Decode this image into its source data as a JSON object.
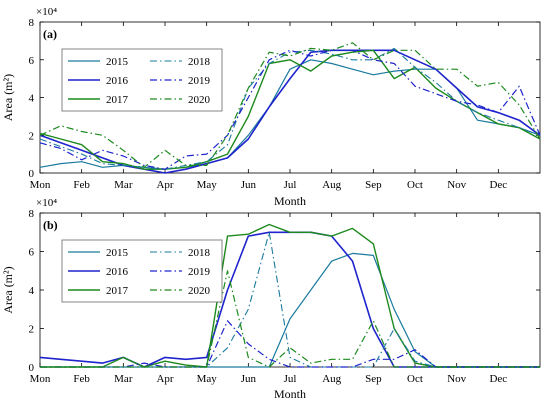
{
  "x_axis_label": "Month",
  "y_axis_label": "Area (m²)",
  "y_exponent_label": "×10⁴",
  "chart_data": [
    {
      "type": "line",
      "panel_label": "(a)",
      "xlabel": "Month",
      "ylabel": "Area (m²)",
      "y_multiplier": "×10⁴",
      "xlim": [
        0,
        12
      ],
      "ylim": [
        0,
        8
      ],
      "grid": false,
      "legend": "top-left",
      "x_tick_labels": [
        "Mon",
        "Feb",
        "Mar",
        "Apr",
        "May",
        "Jun",
        "Jul",
        "Aug",
        "Sep",
        "Oct",
        "Nov",
        "Dec"
      ],
      "y_ticks": [
        0,
        2,
        4,
        6,
        8
      ],
      "series": [
        {
          "name": "2015",
          "color": "#1a7a9e",
          "dash": "solid",
          "width": 1.2,
          "x": [
            0,
            0.5,
            1,
            1.5,
            2,
            2.5,
            3,
            3.5,
            4,
            4.5,
            5,
            5.5,
            6,
            6.5,
            7,
            7.5,
            8,
            8.5,
            9,
            9.5,
            10,
            10.5,
            11,
            11.5,
            12
          ],
          "y": [
            0.3,
            0.5,
            0.6,
            0.3,
            0.4,
            0.3,
            0.2,
            0.3,
            0.5,
            0.8,
            2.0,
            3.5,
            5.5,
            6.0,
            5.8,
            5.5,
            5.2,
            5.4,
            5.5,
            5.5,
            4.5,
            2.8,
            2.6,
            2.4,
            2.0
          ]
        },
        {
          "name": "2016",
          "color": "#1f24cc",
          "dash": "solid",
          "width": 1.6,
          "x": [
            0,
            0.5,
            1,
            1.5,
            2,
            2.5,
            3,
            3.5,
            4,
            4.5,
            5,
            5.5,
            6,
            6.5,
            7,
            7.5,
            8,
            8.5,
            9,
            9.5,
            10,
            10.5,
            11,
            11.5,
            12
          ],
          "y": [
            2.0,
            1.6,
            1.2,
            0.8,
            0.4,
            0.2,
            0.0,
            0.2,
            0.5,
            0.8,
            1.8,
            3.5,
            5.0,
            6.4,
            6.5,
            6.5,
            6.5,
            6.5,
            6.0,
            5.5,
            4.5,
            3.5,
            3.2,
            2.8,
            2.0
          ]
        },
        {
          "name": "2017",
          "color": "#1d8a1d",
          "dash": "solid",
          "width": 1.4,
          "x": [
            0,
            0.5,
            1,
            1.5,
            2,
            2.5,
            3,
            3.5,
            4,
            4.5,
            5,
            5.5,
            6,
            6.5,
            7,
            7.5,
            8,
            8.5,
            9,
            9.5,
            10,
            10.5,
            11,
            11.5,
            12
          ],
          "y": [
            2.1,
            1.8,
            1.5,
            0.6,
            0.5,
            0.2,
            0.2,
            0.3,
            0.6,
            1.0,
            3.0,
            5.8,
            6.0,
            5.4,
            6.2,
            6.4,
            6.5,
            5.0,
            5.6,
            4.5,
            3.8,
            3.2,
            2.6,
            2.4,
            1.8
          ]
        },
        {
          "name": "2018",
          "color": "#1a7a9e",
          "dash": "dashdot",
          "width": 1.1,
          "x": [
            0,
            0.5,
            1,
            1.5,
            2,
            2.5,
            3,
            3.5,
            4,
            4.5,
            5,
            5.5,
            6,
            6.5,
            7,
            7.5,
            8,
            8.5,
            9,
            9.5,
            10,
            10.5,
            11,
            11.5,
            12
          ],
          "y": [
            1.8,
            1.4,
            1.0,
            0.5,
            0.4,
            0.3,
            0.2,
            0.4,
            0.6,
            1.5,
            4.5,
            5.8,
            6.4,
            6.5,
            6.3,
            6.0,
            6.0,
            6.6,
            5.6,
            4.8,
            3.8,
            3.2,
            2.8,
            2.4,
            2.0
          ]
        },
        {
          "name": "2019",
          "color": "#1f24cc",
          "dash": "dashdot",
          "width": 1.2,
          "x": [
            0,
            0.5,
            1,
            1.5,
            2,
            2.5,
            3,
            3.5,
            4,
            4.5,
            5,
            5.5,
            6,
            6.5,
            7,
            7.5,
            8,
            8.5,
            9,
            9.5,
            10,
            10.5,
            11,
            11.5,
            12
          ],
          "y": [
            1.6,
            1.3,
            0.7,
            1.2,
            0.9,
            0.4,
            0.2,
            0.9,
            1.0,
            2.0,
            4.0,
            6.0,
            6.5,
            6.2,
            6.5,
            6.5,
            6.0,
            5.8,
            4.6,
            4.2,
            3.8,
            3.6,
            3.2,
            4.6,
            2.0
          ]
        },
        {
          "name": "2020",
          "color": "#1d8a1d",
          "dash": "dashdot",
          "width": 1.2,
          "x": [
            0,
            0.5,
            1,
            1.5,
            2,
            2.5,
            3,
            3.5,
            4,
            4.5,
            5,
            5.5,
            6,
            6.5,
            7,
            7.5,
            8,
            8.5,
            9,
            9.5,
            10,
            10.5,
            11,
            11.5,
            12
          ],
          "y": [
            2.0,
            2.5,
            2.2,
            2.0,
            1.2,
            0.3,
            1.2,
            0.4,
            0.4,
            2.0,
            4.5,
            6.4,
            6.2,
            6.6,
            6.5,
            6.9,
            6.0,
            6.5,
            6.5,
            5.5,
            5.5,
            4.6,
            4.8,
            3.6,
            1.8
          ]
        }
      ]
    },
    {
      "type": "line",
      "panel_label": "(b)",
      "xlabel": "Month",
      "ylabel": "Area (m²)",
      "y_multiplier": "×10⁴",
      "xlim": [
        0,
        12
      ],
      "ylim": [
        0,
        8
      ],
      "grid": false,
      "legend": "top-left",
      "x_tick_labels": [
        "Mon",
        "Feb",
        "Mar",
        "Apr",
        "May",
        "Jun",
        "Jul",
        "Aug",
        "Sep",
        "Oct",
        "Nov",
        "Dec"
      ],
      "y_ticks": [
        0,
        2,
        4,
        6,
        8
      ],
      "series": [
        {
          "name": "2015",
          "color": "#1a7a9e",
          "dash": "solid",
          "width": 1.2,
          "x": [
            0,
            0.5,
            1,
            1.5,
            2,
            2.5,
            3,
            3.5,
            4,
            4.5,
            5,
            5.5,
            6,
            6.5,
            7,
            7.5,
            8,
            8.5,
            9,
            9.5,
            10,
            10.5,
            11,
            11.5,
            12
          ],
          "y": [
            0.0,
            0.0,
            0.0,
            0.0,
            0.0,
            0.0,
            0.0,
            0.0,
            0.0,
            0.0,
            0.0,
            0.0,
            2.5,
            4.0,
            5.5,
            5.9,
            5.8,
            3.0,
            0.8,
            0.0,
            0.0,
            0.0,
            0.0,
            0.0,
            0.0
          ]
        },
        {
          "name": "2016",
          "color": "#1f24cc",
          "dash": "solid",
          "width": 1.6,
          "x": [
            0,
            0.5,
            1,
            1.5,
            2,
            2.5,
            3,
            3.5,
            4,
            4.5,
            5,
            5.5,
            6,
            6.5,
            7,
            7.5,
            8,
            8.5,
            9,
            9.5,
            10,
            10.5,
            11,
            11.5,
            12
          ],
          "y": [
            0.5,
            0.4,
            0.3,
            0.2,
            0.5,
            0.0,
            0.5,
            0.4,
            0.5,
            4.0,
            6.8,
            7.0,
            7.0,
            7.0,
            6.8,
            5.5,
            2.0,
            0.0,
            0.0,
            0.0,
            0.0,
            0.0,
            0.0,
            0.0,
            0.0
          ]
        },
        {
          "name": "2017",
          "color": "#1d8a1d",
          "dash": "solid",
          "width": 1.4,
          "x": [
            0,
            0.5,
            1,
            1.5,
            2,
            2.5,
            3,
            3.5,
            4,
            4.5,
            5,
            5.5,
            6,
            6.5,
            7,
            7.5,
            8,
            8.5,
            9,
            9.5,
            10,
            10.5,
            11,
            11.5,
            12
          ],
          "y": [
            0.0,
            0.0,
            0.0,
            0.0,
            0.5,
            0.0,
            0.3,
            0.1,
            0.0,
            6.8,
            6.9,
            7.4,
            7.0,
            7.0,
            6.8,
            7.2,
            6.4,
            2.0,
            0.2,
            0.0,
            0.0,
            0.0,
            0.0,
            0.0,
            0.0
          ]
        },
        {
          "name": "2018",
          "color": "#1a7a9e",
          "dash": "dashdot",
          "width": 1.1,
          "x": [
            0,
            0.5,
            1,
            1.5,
            2,
            2.5,
            3,
            3.5,
            4,
            4.5,
            5,
            5.5,
            6,
            6.5,
            7,
            7.5,
            8,
            8.5,
            9,
            9.5,
            10,
            10.5,
            11,
            11.5,
            12
          ],
          "y": [
            0.0,
            0.0,
            0.0,
            0.0,
            0.0,
            0.0,
            0.0,
            0.0,
            0.0,
            1.0,
            3.0,
            7.0,
            0.5,
            0.0,
            0.0,
            0.0,
            0.0,
            2.0,
            0.3,
            0.0,
            0.0,
            0.0,
            0.0,
            0.0,
            0.0
          ]
        },
        {
          "name": "2019",
          "color": "#1f24cc",
          "dash": "dashdot",
          "width": 1.2,
          "x": [
            0,
            0.5,
            1,
            1.5,
            2,
            2.5,
            3,
            3.5,
            4,
            4.5,
            5,
            5.5,
            6,
            6.5,
            7,
            7.5,
            8,
            8.5,
            9,
            9.5,
            10,
            10.5,
            11,
            11.5,
            12
          ],
          "y": [
            0.0,
            0.0,
            0.0,
            0.0,
            0.0,
            0.2,
            0.0,
            0.0,
            0.0,
            2.4,
            1.2,
            0.4,
            0.0,
            0.0,
            0.0,
            0.0,
            0.4,
            0.4,
            0.9,
            0.0,
            0.0,
            0.0,
            0.0,
            0.0,
            0.0
          ]
        },
        {
          "name": "2020",
          "color": "#1d8a1d",
          "dash": "dashdot",
          "width": 1.2,
          "x": [
            0,
            0.5,
            1,
            1.5,
            2,
            2.5,
            3,
            3.5,
            4,
            4.5,
            5,
            5.5,
            6,
            6.5,
            7,
            7.5,
            8,
            8.5,
            9,
            9.5,
            10,
            10.5,
            11,
            11.5,
            12
          ],
          "y": [
            0.0,
            0.0,
            0.0,
            0.0,
            0.0,
            0.0,
            0.0,
            0.0,
            0.0,
            5.0,
            0.5,
            0.0,
            1.0,
            0.2,
            0.4,
            0.4,
            2.4,
            0.0,
            0.0,
            0.0,
            0.0,
            0.0,
            0.0,
            0.0,
            0.0
          ]
        }
      ]
    }
  ]
}
